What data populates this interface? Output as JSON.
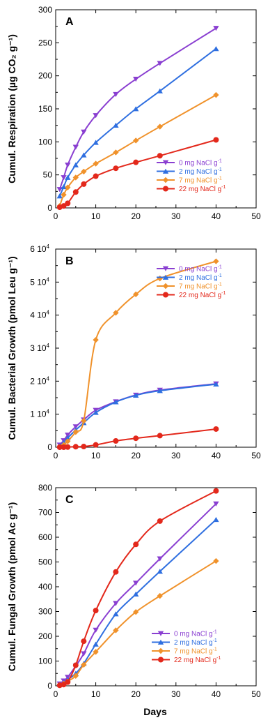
{
  "xlabel": "Days",
  "colors": {
    "0 mg": "#8a3fd1",
    "2 mg": "#2f6fe0",
    "7 mg": "#f0922b",
    "22 mg": "#e3281b"
  },
  "chart_data": [
    {
      "type": "line",
      "panel": "A",
      "ylabel": "Cumul. Respiration (µg CO₂ g⁻¹)",
      "xlim": [
        0,
        50
      ],
      "ylim": [
        0,
        300
      ],
      "xticks": [
        "0",
        "10",
        "20",
        "30",
        "40",
        "50"
      ],
      "yticks": [
        "0",
        "50",
        "100",
        "150",
        "200",
        "250",
        "300"
      ],
      "legend_position": "lower-right",
      "x": [
        1,
        2,
        3,
        5,
        7,
        10,
        15,
        20,
        26,
        40
      ],
      "series": [
        {
          "name": "0 mg NaCl g⁻¹",
          "key": "0 mg",
          "marker": "triangle-down",
          "values": [
            28,
            46,
            65,
            92,
            115,
            140,
            172,
            195,
            219,
            272
          ]
        },
        {
          "name": "2 mg NaCl g⁻¹",
          "key": "2 mg",
          "marker": "triangle-up",
          "values": [
            18,
            32,
            46,
            65,
            80,
            99,
            125,
            150,
            177,
            241
          ]
        },
        {
          "name": "7 mg NaCl g⁻¹",
          "key": "7 mg",
          "marker": "diamond",
          "values": [
            3,
            20,
            31,
            46,
            55,
            67,
            84,
            102,
            123,
            171
          ]
        },
        {
          "name": "22 mg NaCl g⁻¹",
          "key": "22 mg",
          "marker": "circle",
          "values": [
            1,
            3,
            7,
            24,
            36,
            48,
            60,
            69,
            79,
            103
          ]
        }
      ]
    },
    {
      "type": "line",
      "panel": "B",
      "ylabel": "Cumul. Bacterial Growth (pmol Leu g⁻¹)",
      "xlim": [
        0,
        50
      ],
      "ylim": [
        0,
        60000
      ],
      "xticks": [
        "0",
        "10",
        "20",
        "30",
        "40",
        "50"
      ],
      "yticks": [
        "0",
        "1 10⁴",
        "2 10⁴",
        "3 10⁴",
        "4 10⁴",
        "5 10⁴",
        "6 10⁴"
      ],
      "legend_position": "top-right",
      "x": [
        1,
        2,
        3,
        5,
        7,
        10,
        15,
        20,
        26,
        40
      ],
      "series": [
        {
          "name": "0 mg NaCl g⁻¹",
          "key": "0 mg",
          "marker": "triangle-down",
          "values": [
            700,
            2000,
            3700,
            6200,
            8300,
            11200,
            13800,
            15800,
            17300,
            19200
          ]
        },
        {
          "name": "2 mg NaCl g⁻¹",
          "key": "2 mg",
          "marker": "triangle-up",
          "values": [
            500,
            1400,
            2800,
            5200,
            7400,
            10500,
            13700,
            15700,
            17100,
            19100
          ]
        },
        {
          "name": "7 mg NaCl g⁻¹",
          "key": "7 mg",
          "marker": "diamond",
          "values": [
            100,
            700,
            1800,
            4600,
            8000,
            32500,
            40700,
            46300,
            51100,
            56300
          ]
        },
        {
          "name": "22 mg NaCl g⁻¹",
          "key": "22 mg",
          "marker": "circle",
          "values": [
            0,
            0,
            50,
            150,
            200,
            700,
            1900,
            2700,
            3500,
            5500
          ]
        }
      ]
    },
    {
      "type": "line",
      "panel": "C",
      "ylabel": "Cumul. Fungal Growth (pmol Ac g⁻¹)",
      "xlim": [
        0,
        50
      ],
      "ylim": [
        0,
        800
      ],
      "xticks": [
        "0",
        "10",
        "20",
        "30",
        "40",
        "50"
      ],
      "yticks": [
        "0",
        "100",
        "200",
        "300",
        "400",
        "500",
        "600",
        "700",
        "800"
      ],
      "legend_position": "lower-right",
      "x": [
        1,
        2,
        3,
        5,
        7,
        10,
        15,
        20,
        26,
        40
      ],
      "series": [
        {
          "name": "0 mg NaCl g⁻¹",
          "key": "0 mg",
          "marker": "triangle-down",
          "values": [
            8,
            20,
            35,
            80,
            130,
            225,
            333,
            415,
            513,
            735
          ]
        },
        {
          "name": "2 mg NaCl g⁻¹",
          "key": "2 mg",
          "marker": "triangle-up",
          "values": [
            5,
            14,
            25,
            50,
            90,
            168,
            290,
            370,
            462,
            671
          ]
        },
        {
          "name": "7 mg NaCl g⁻¹",
          "key": "7 mg",
          "marker": "diamond",
          "values": [
            3,
            9,
            18,
            40,
            85,
            137,
            224,
            298,
            363,
            504
          ]
        },
        {
          "name": "22 mg NaCl g⁻¹",
          "key": "22 mg",
          "marker": "circle",
          "values": [
            2,
            5,
            15,
            83,
            180,
            304,
            460,
            571,
            665,
            787
          ]
        }
      ]
    }
  ]
}
